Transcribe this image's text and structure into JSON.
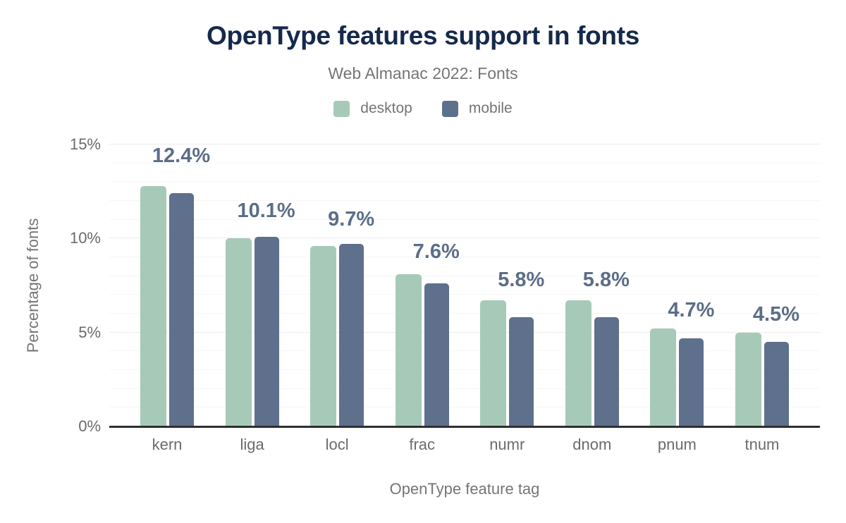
{
  "title": "OpenType features support in fonts",
  "subtitle": "Web Almanac 2022: Fonts",
  "legend": [
    {
      "label": "desktop",
      "color": "#a7cab8"
    },
    {
      "label": "mobile",
      "color": "#5f708d"
    }
  ],
  "y_axis": {
    "title": "Percentage of fonts",
    "ticks": [
      "15%",
      "10%",
      "5%",
      "0%"
    ]
  },
  "x_axis": {
    "title": "OpenType feature tag"
  },
  "colors": {
    "title": "#15294b",
    "subtitle": "#757575",
    "data_label": "#5c6d87",
    "axis_line": "#2f2f2f",
    "gridline_major": "#ececec",
    "gridline_minor": "#f7f7f7",
    "desktop_bar": "#a7cab8",
    "mobile_bar": "#5f708d"
  },
  "chart_data": {
    "type": "bar",
    "title": "OpenType features support in fonts",
    "subtitle": "Web Almanac 2022: Fonts",
    "xlabel": "OpenType feature tag",
    "ylabel": "Percentage of fonts",
    "categories": [
      "kern",
      "liga",
      "locl",
      "frac",
      "numr",
      "dnom",
      "pnum",
      "tnum"
    ],
    "series": [
      {
        "name": "desktop",
        "color": "#a7cab8",
        "values": [
          12.8,
          10.0,
          9.6,
          8.1,
          6.7,
          6.7,
          5.2,
          5.0
        ]
      },
      {
        "name": "mobile",
        "color": "#5f708d",
        "values": [
          12.4,
          10.1,
          9.7,
          7.6,
          5.8,
          5.8,
          4.7,
          4.5
        ]
      }
    ],
    "data_labels": [
      "12.4%",
      "10.1%",
      "9.7%",
      "7.6%",
      "5.8%",
      "5.8%",
      "4.7%",
      "4.5%"
    ],
    "data_labels_series": "mobile",
    "ylim": [
      0,
      15
    ],
    "ytick_major_interval": 5,
    "ytick_minor_interval": 1,
    "grid": true,
    "legend_position": "top",
    "unit": "%"
  }
}
